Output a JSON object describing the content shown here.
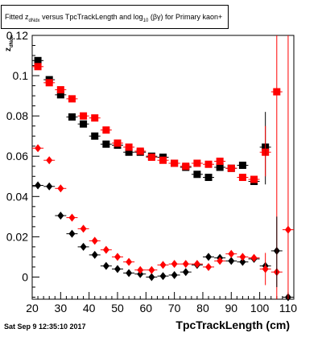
{
  "chart_data": {
    "type": "scatter",
    "title_parts": {
      "fitted": "Fitted",
      "z": "z",
      "z_sub": "dNdx",
      "mid": "versus TpcTrackLength and log",
      "log_sub": "10",
      "tail": "(βγ) for Primary kaon+"
    },
    "xlabel": "TpcTrackLength (cm)",
    "ylabel_parts": {
      "main": "z",
      "sub": "dNdx"
    },
    "xlim": [
      20,
      112
    ],
    "ylim": [
      -0.011,
      0.12
    ],
    "x_ticks": [
      20,
      30,
      40,
      50,
      60,
      70,
      80,
      90,
      100,
      110
    ],
    "y_ticks": [
      0,
      0.02,
      0.04,
      0.06,
      0.08,
      0.1,
      0.12
    ],
    "y_tick_labels": [
      "0",
      "0.02",
      "0.04",
      "0.06",
      "0.08",
      "0.1",
      "0.12"
    ],
    "series": [
      {
        "marker": "square",
        "color": "#000000",
        "points": [
          [
            22,
            0.1075
          ],
          [
            26,
            0.098
          ],
          [
            30,
            0.0905
          ],
          [
            34,
            0.0795
          ],
          [
            38,
            0.076
          ],
          [
            42,
            0.07
          ],
          [
            46,
            0.066
          ],
          [
            50,
            0.0655
          ],
          [
            54,
            0.062
          ],
          [
            58,
            0.062
          ],
          [
            62,
            0.06
          ],
          [
            66,
            0.0595
          ],
          [
            70,
            0.0565
          ],
          [
            74,
            0.0545
          ],
          [
            78,
            0.051
          ],
          [
            82,
            0.0495
          ],
          [
            86,
            0.0545
          ],
          [
            90,
            0.054
          ],
          [
            94,
            0.0555
          ],
          [
            98,
            0.0475
          ],
          [
            102,
            0.0645
          ]
        ]
      },
      {
        "marker": "square",
        "color": "#ff0000",
        "points": [
          [
            22,
            0.1045
          ],
          [
            26,
            0.0965
          ],
          [
            30,
            0.093
          ],
          [
            34,
            0.0885
          ],
          [
            38,
            0.08
          ],
          [
            42,
            0.079
          ],
          [
            46,
            0.073
          ],
          [
            50,
            0.0665
          ],
          [
            54,
            0.0645
          ],
          [
            58,
            0.0625
          ],
          [
            62,
            0.0595
          ],
          [
            66,
            0.058
          ],
          [
            70,
            0.0565
          ],
          [
            74,
            0.055
          ],
          [
            78,
            0.0565
          ],
          [
            82,
            0.056
          ],
          [
            86,
            0.0575
          ],
          [
            90,
            0.054
          ],
          [
            94,
            0.0495
          ],
          [
            98,
            0.0485
          ],
          [
            102,
            0.062
          ],
          [
            106,
            0.092
          ]
        ]
      },
      {
        "marker": "diamond",
        "color": "#000000",
        "points": [
          [
            22,
            0.0455
          ],
          [
            26,
            0.045
          ],
          [
            30,
            0.0305
          ],
          [
            34,
            0.0215
          ],
          [
            38,
            0.015
          ],
          [
            42,
            0.011
          ],
          [
            46,
            0.0055
          ],
          [
            50,
            0.004
          ],
          [
            54,
            0.002
          ],
          [
            58,
            0.0015
          ],
          [
            62,
            0.0
          ],
          [
            66,
            0.0005
          ],
          [
            70,
            0.001
          ],
          [
            74,
            0.0025
          ],
          [
            78,
            0.006
          ],
          [
            82,
            0.01
          ],
          [
            86,
            0.0095
          ],
          [
            90,
            0.008
          ],
          [
            94,
            0.0075
          ],
          [
            98,
            0.009
          ],
          [
            102,
            0.0055
          ],
          [
            106,
            0.013
          ],
          [
            110,
            -0.01
          ]
        ]
      },
      {
        "marker": "diamond",
        "color": "#ff0000",
        "points": [
          [
            22,
            0.064
          ],
          [
            26,
            0.058
          ],
          [
            30,
            0.044
          ],
          [
            34,
            0.0295
          ],
          [
            38,
            0.024
          ],
          [
            42,
            0.018
          ],
          [
            46,
            0.0135
          ],
          [
            50,
            0.01
          ],
          [
            54,
            0.0075
          ],
          [
            58,
            0.0035
          ],
          [
            62,
            0.0035
          ],
          [
            66,
            0.006
          ],
          [
            70,
            0.0065
          ],
          [
            74,
            0.0065
          ],
          [
            78,
            0.0065
          ],
          [
            82,
            0.005
          ],
          [
            86,
            0.008
          ],
          [
            90,
            0.0115
          ],
          [
            94,
            0.01
          ],
          [
            98,
            0.0095
          ],
          [
            102,
            0.004
          ],
          [
            106,
            0.0025
          ],
          [
            110,
            0.0235
          ]
        ]
      }
    ]
  },
  "footer": {
    "date": "Sat Sep  9 12:35:10 2017"
  }
}
